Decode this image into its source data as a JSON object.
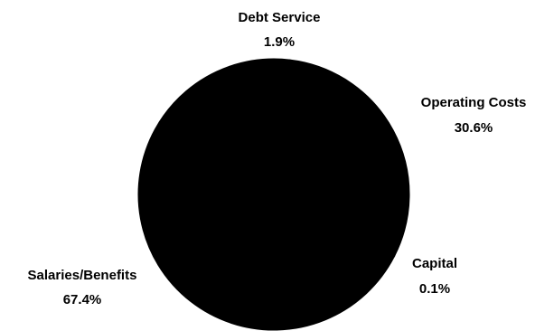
{
  "chart_data": {
    "type": "pie",
    "slices": [
      {
        "name": "Debt Service",
        "value": 1.9,
        "label": "1.9%",
        "color": "#000000"
      },
      {
        "name": "Operating Costs",
        "value": 30.6,
        "label": "30.6%",
        "color": "#000000"
      },
      {
        "name": "Capital",
        "value": 0.1,
        "label": "0.1%",
        "color": "#000000"
      },
      {
        "name": "Salaries/Benefits",
        "value": 67.4,
        "label": "67.4%",
        "color": "#000000"
      }
    ],
    "title": "",
    "legend": "none",
    "labels_outside": true
  }
}
